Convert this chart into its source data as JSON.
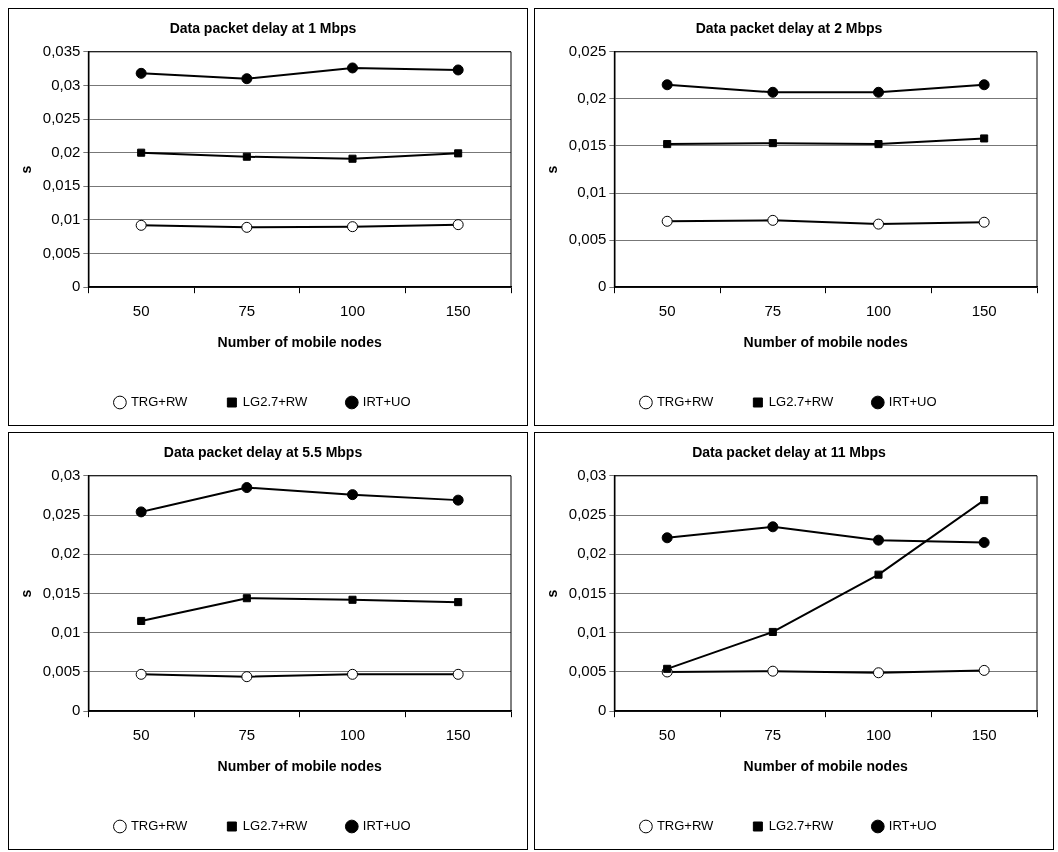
{
  "chart_data": [
    {
      "type": "line",
      "title": "Data packet delay at 1 Mbps",
      "xlabel": "Number of mobile nodes",
      "ylabel": "s",
      "categories": [
        "50",
        "75",
        "100",
        "150"
      ],
      "ylim": [
        0,
        0.035
      ],
      "yticks": [
        {
          "value": 0,
          "label": "0"
        },
        {
          "value": 0.005,
          "label": "0,005"
        },
        {
          "value": 0.01,
          "label": "0,01"
        },
        {
          "value": 0.015,
          "label": "0,015"
        },
        {
          "value": 0.02,
          "label": "0,02"
        },
        {
          "value": 0.025,
          "label": "0,025"
        },
        {
          "value": 0.03,
          "label": "0,03"
        },
        {
          "value": 0.035,
          "label": "0,035"
        }
      ],
      "grid": "y",
      "legend": "bottom",
      "line_style": "solid",
      "series": [
        {
          "name": "TRG+RW",
          "color": "#000000",
          "marker": "circle",
          "colors": [
            "#ffffff",
            "#ffffff",
            "#ffffff",
            "#ffffff"
          ],
          "values": [
            0.0092,
            0.0089,
            0.009,
            0.0093
          ]
        },
        {
          "name": "LG2.7+RW",
          "color": "#000000",
          "marker": "square",
          "values": [
            0.02,
            0.0194,
            0.0191,
            0.0199
          ]
        },
        {
          "name": "IRT+UO",
          "color": "#000000",
          "marker": "circle",
          "values": [
            0.0318,
            0.031,
            0.0326,
            0.0323
          ]
        }
      ]
    },
    {
      "type": "line",
      "title": "Data packet delay at 2 Mbps",
      "xlabel": "Number of mobile nodes",
      "ylabel": "s",
      "categories": [
        "50",
        "75",
        "100",
        "150"
      ],
      "ylim": [
        0,
        0.025
      ],
      "yticks": [
        {
          "value": 0,
          "label": "0"
        },
        {
          "value": 0.005,
          "label": "0,005"
        },
        {
          "value": 0.01,
          "label": "0,01"
        },
        {
          "value": 0.015,
          "label": "0,015"
        },
        {
          "value": 0.02,
          "label": "0,02"
        },
        {
          "value": 0.025,
          "label": "0,025"
        }
      ],
      "grid": "y",
      "legend": "bottom",
      "line_style": "solid",
      "series": [
        {
          "name": "TRG+RW",
          "color": "#000000",
          "marker": "circle",
          "colors": [
            "#ffffff",
            "#ffffff",
            "#ffffff",
            "#ffffff"
          ],
          "values": [
            0.007,
            0.0071,
            0.0067,
            0.0069
          ]
        },
        {
          "name": "LG2.7+RW",
          "color": "#000000",
          "marker": "square",
          "values": [
            0.0152,
            0.0153,
            0.0152,
            0.0158
          ]
        },
        {
          "name": "IRT+UO",
          "color": "#000000",
          "marker": "circle",
          "values": [
            0.0215,
            0.0207,
            0.0207,
            0.0215
          ]
        }
      ]
    },
    {
      "type": "line",
      "title": "Data packet delay at 5.5 Mbps",
      "xlabel": "Number of mobile nodes",
      "ylabel": "s",
      "categories": [
        "50",
        "75",
        "100",
        "150"
      ],
      "ylim": [
        0,
        0.03
      ],
      "yticks": [
        {
          "value": 0,
          "label": "0"
        },
        {
          "value": 0.005,
          "label": "0,005"
        },
        {
          "value": 0.01,
          "label": "0,01"
        },
        {
          "value": 0.015,
          "label": "0,015"
        },
        {
          "value": 0.02,
          "label": "0,02"
        },
        {
          "value": 0.025,
          "label": "0,025"
        },
        {
          "value": 0.03,
          "label": "0,03"
        }
      ],
      "grid": "y",
      "legend": "bottom",
      "line_style": "solid",
      "series": [
        {
          "name": "TRG+RW",
          "color": "#000000",
          "marker": "circle",
          "colors": [
            "#ffffff",
            "#ffffff",
            "#ffffff",
            "#ffffff"
          ],
          "values": [
            0.0047,
            0.0044,
            0.0047,
            0.0047
          ]
        },
        {
          "name": "LG2.7+RW",
          "color": "#000000",
          "marker": "square",
          "values": [
            0.0115,
            0.0144,
            0.0142,
            0.0139
          ]
        },
        {
          "name": "IRT+UO",
          "color": "#000000",
          "marker": "circle",
          "values": [
            0.0254,
            0.0285,
            0.0276,
            0.0269
          ]
        }
      ]
    },
    {
      "type": "line",
      "title": "Data packet delay at 11 Mbps",
      "xlabel": "Number of mobile nodes",
      "ylabel": "s",
      "categories": [
        "50",
        "75",
        "100",
        "150"
      ],
      "ylim": [
        0,
        0.03
      ],
      "yticks": [
        {
          "value": 0,
          "label": "0"
        },
        {
          "value": 0.005,
          "label": "0,005"
        },
        {
          "value": 0.01,
          "label": "0,01"
        },
        {
          "value": 0.015,
          "label": "0,015"
        },
        {
          "value": 0.02,
          "label": "0,02"
        },
        {
          "value": 0.025,
          "label": "0,025"
        },
        {
          "value": 0.03,
          "label": "0,03"
        }
      ],
      "grid": "y",
      "legend": "bottom",
      "line_style": "solid",
      "series": [
        {
          "name": "TRG+RW",
          "color": "#000000",
          "marker": "circle",
          "colors": [
            "#ffffff",
            "#ffffff",
            "#ffffff",
            "#ffffff"
          ],
          "values": [
            0.005,
            0.0051,
            0.0049,
            0.0052
          ]
        },
        {
          "name": "LG2.7+RW",
          "color": "#000000",
          "marker": "square",
          "values": [
            0.0054,
            0.0101,
            0.0174,
            0.0269
          ]
        },
        {
          "name": "IRT+UO",
          "color": "#000000",
          "marker": "circle",
          "values": [
            0.0221,
            0.0235,
            0.0218,
            0.0215
          ]
        }
      ]
    }
  ]
}
